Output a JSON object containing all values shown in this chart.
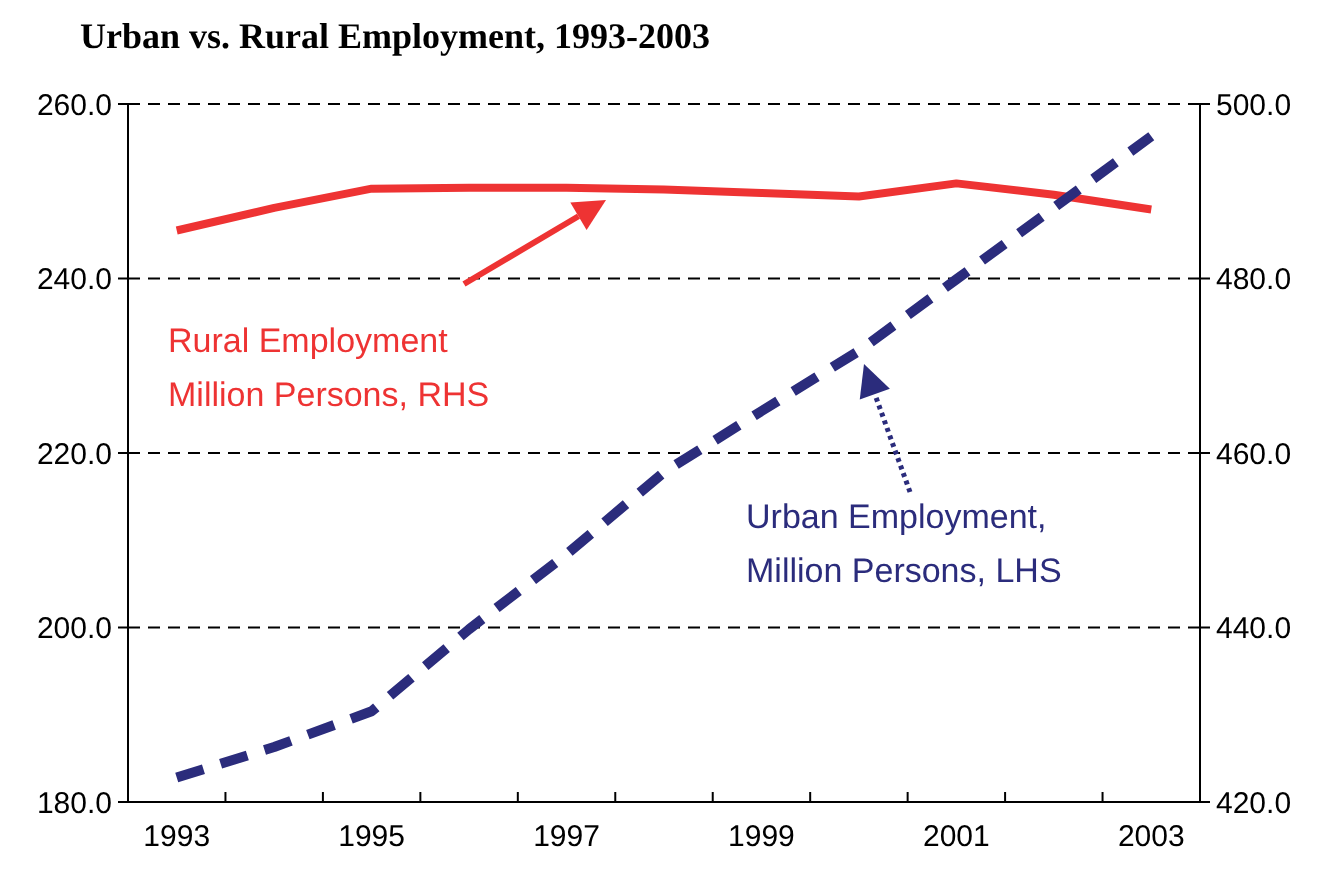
{
  "chart_data": {
    "type": "line",
    "title": "Urban vs. Rural Employment, 1993-2003",
    "categories": [
      "1993",
      null,
      "1995",
      null,
      "1997",
      null,
      "1999",
      null,
      "2001",
      null,
      "2003"
    ],
    "series": [
      {
        "name": "Rural Employment\nMillion Persons, RHS",
        "color": "#ee3333",
        "axis": "y2",
        "line_style": "solid",
        "values": [
          485.5,
          488.1,
          490.3,
          490.4,
          490.4,
          490.2,
          489.8,
          489.4,
          490.9,
          489.6,
          487.9
        ]
      },
      {
        "name": "Urban Employment,\nMillion Persons, LHS",
        "color": "#2b2c7c",
        "line_style": "dashed",
        "values": [
          182.8,
          186.3,
          190.4,
          199.8,
          208.4,
          217.8,
          224.8,
          231.7,
          239.9,
          248.1,
          256.3
        ]
      }
    ],
    "ylim": [
      180,
      260
    ],
    "yticks": [
      {
        "value": 180,
        "label": "180.0"
      },
      {
        "value": 200,
        "label": "200.0"
      },
      {
        "value": 220,
        "label": "220.0"
      },
      {
        "value": 240,
        "label": "240.0"
      },
      {
        "value": 260,
        "label": "260.0"
      }
    ],
    "y2lim": [
      420,
      500
    ],
    "y2ticks": [
      {
        "value": 420,
        "label": "420.0"
      },
      {
        "value": 440,
        "label": "440.0"
      },
      {
        "value": 460,
        "label": "460.0"
      },
      {
        "value": 480,
        "label": "480.0"
      },
      {
        "value": 500,
        "label": "500.0"
      }
    ],
    "grid": "y",
    "marker": "none"
  }
}
